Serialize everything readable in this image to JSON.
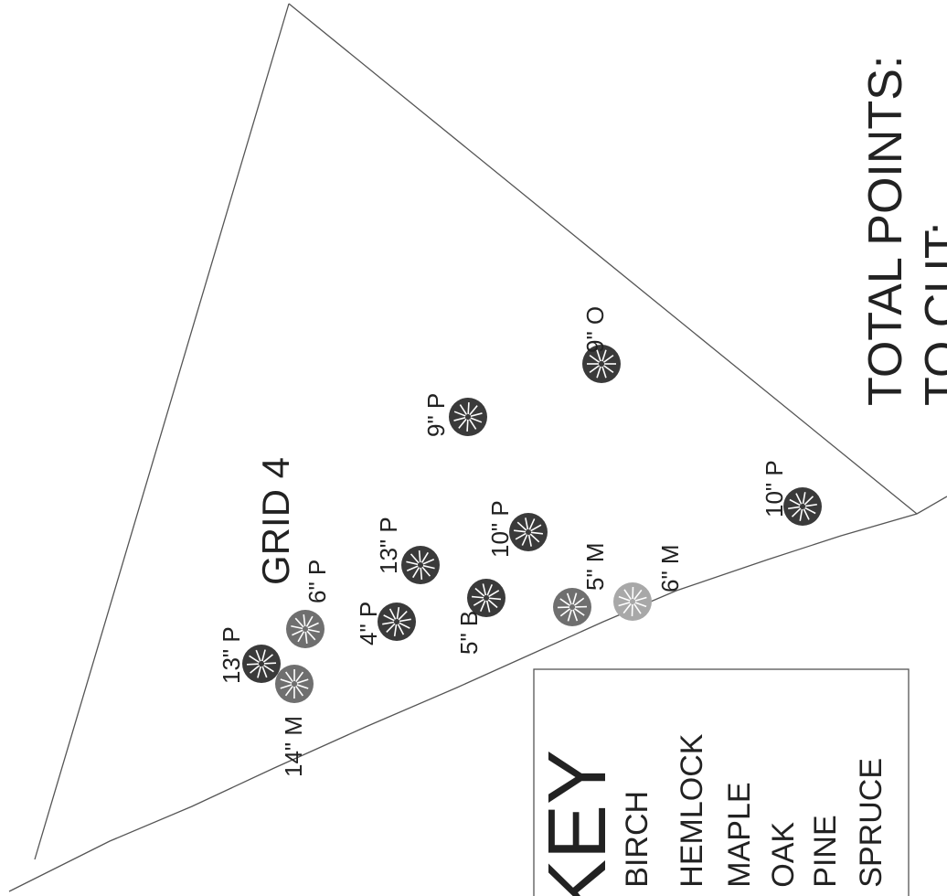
{
  "grid_label": "GRID 4",
  "totals": {
    "total_points_label": "TOTAL POINTS:",
    "to_cut_label": "TO CUT:"
  },
  "key": {
    "title": "KEY",
    "items": [
      {
        "code": "= ",
        "name": "BIRCH"
      },
      {
        "code": "= ",
        "name": "HEMLOCK"
      },
      {
        "code": "= ",
        "name": "MAPLE"
      },
      {
        "code": "= ",
        "name": "OAK"
      },
      {
        "code": "= ",
        "name": "PINE"
      },
      {
        "code": "= ",
        "name": "SPRUCE"
      }
    ]
  },
  "trees": [
    {
      "label": "9\" O",
      "shade": "dark"
    },
    {
      "label": "9\" P",
      "shade": "dark"
    },
    {
      "label": "10\" P",
      "shade": "dark"
    },
    {
      "label": "10\" P",
      "shade": "dark"
    },
    {
      "label": "13\" P",
      "shade": "dark"
    },
    {
      "label": "5\" M",
      "shade": "mid"
    },
    {
      "label": "6\" M",
      "shade": "light"
    },
    {
      "label": "5\" B",
      "shade": "dark"
    },
    {
      "label": "4\" P",
      "shade": "dark"
    },
    {
      "label": "6\" P",
      "shade": "mid"
    },
    {
      "label": "13\" P",
      "shade": "dark"
    },
    {
      "label": "14\" M",
      "shade": "mid"
    }
  ]
}
